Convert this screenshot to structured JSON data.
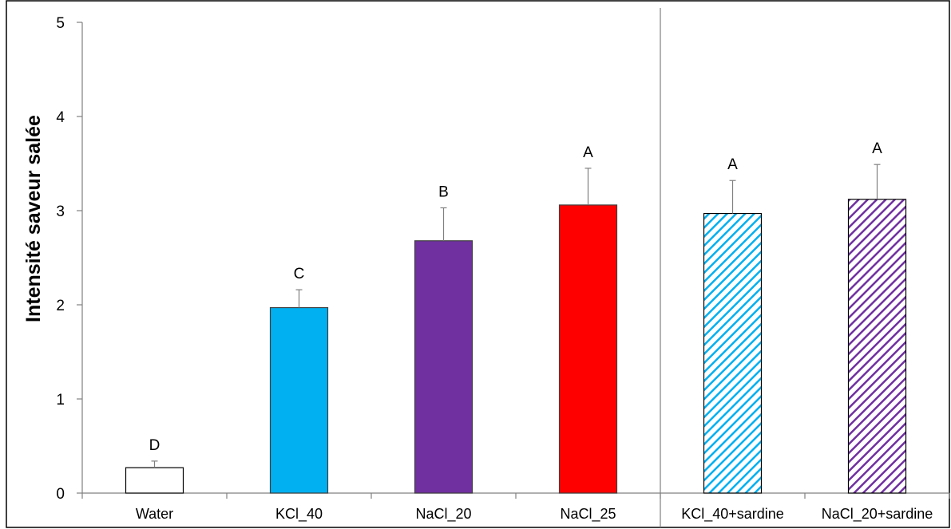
{
  "chart_data": {
    "type": "bar",
    "ylabel": "Intensité saveur salée",
    "xlabel": "",
    "ylim": [
      0,
      5
    ],
    "yticks": [
      "0",
      "1",
      "2",
      "3",
      "4",
      "5"
    ],
    "categories": [
      "Water",
      "KCl_40",
      "NaCl_20",
      "NaCl_25",
      "KCl_40+sardine",
      "NaCl_20+sardine"
    ],
    "values": [
      0.27,
      1.97,
      2.68,
      3.06,
      2.97,
      3.12
    ],
    "errors": [
      0.07,
      0.19,
      0.35,
      0.39,
      0.35,
      0.37
    ],
    "significance": [
      "D",
      "C",
      "B",
      "A",
      "A",
      "A"
    ],
    "colors": [
      "#ffffff",
      "#00b0f0",
      "#7030a0",
      "#ff0000",
      "#00b0f0",
      "#7030a0"
    ],
    "fill_styles": [
      "solid",
      "solid",
      "solid",
      "solid",
      "hatched",
      "hatched"
    ],
    "group_separator_after_index": 3,
    "grid": false,
    "legend": "none"
  }
}
